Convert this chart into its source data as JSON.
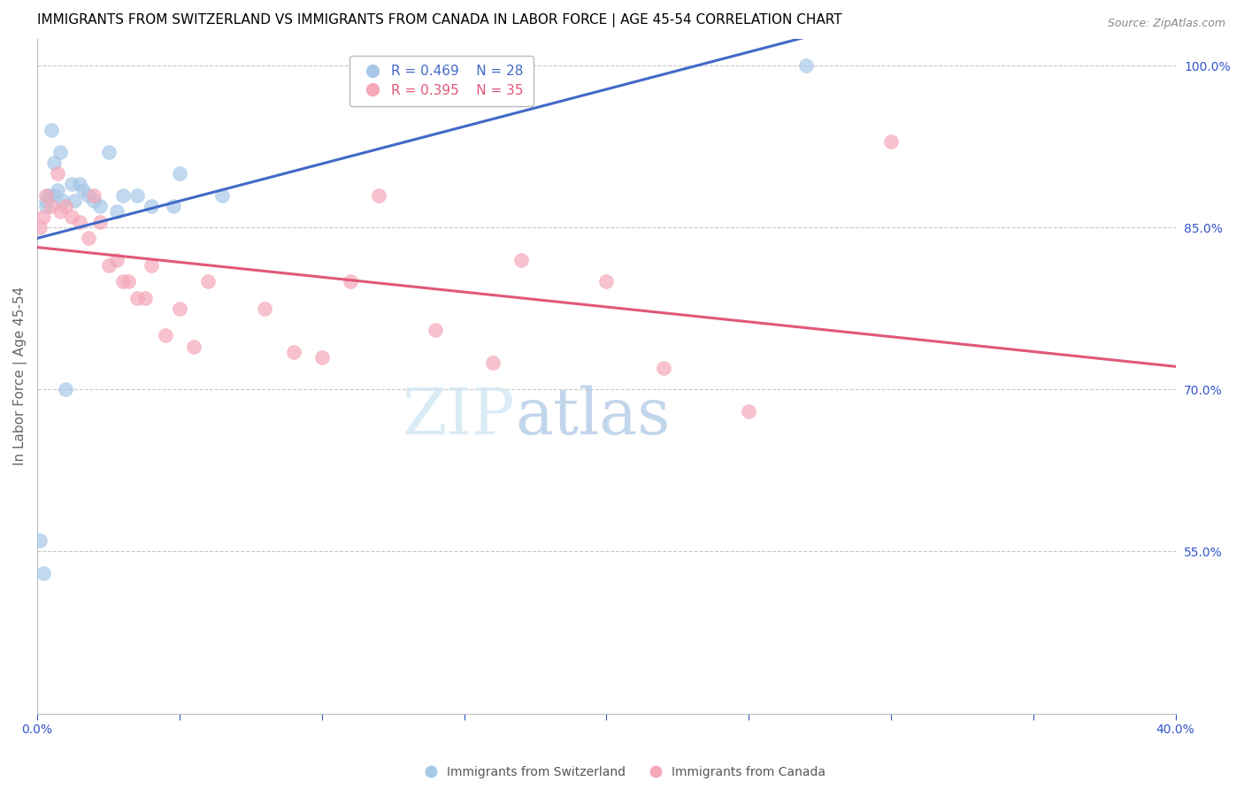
{
  "title": "IMMIGRANTS FROM SWITZERLAND VS IMMIGRANTS FROM CANADA IN LABOR FORCE | AGE 45-54 CORRELATION CHART",
  "source": "Source: ZipAtlas.com",
  "ylabel": "In Labor Force | Age 45-54",
  "x_min": 0.0,
  "x_max": 0.4,
  "y_min": 0.4,
  "y_max": 1.025,
  "right_yticks": [
    0.55,
    0.7,
    0.85,
    1.0
  ],
  "right_yticklabels": [
    "55.0%",
    "70.0%",
    "85.0%",
    "100.0%"
  ],
  "xticks": [
    0.0,
    0.05,
    0.1,
    0.15,
    0.2,
    0.25,
    0.3,
    0.35,
    0.4
  ],
  "xticklabels": [
    "0.0%",
    "",
    "",
    "",
    "",
    "",
    "",
    "",
    "40.0%"
  ],
  "watermark_zip": "ZIP",
  "watermark_atlas": "atlas",
  "blue_color": "#a8c8e8",
  "pink_color": "#f4a8b8",
  "blue_line_color": "#4169c8",
  "pink_line_color": "#e05878",
  "background_color": "#ffffff",
  "grid_color": "#c8c8c8",
  "title_fontsize": 11,
  "source_fontsize": 9,
  "tick_label_color": "#3355cc",
  "R_swiss": 0.469,
  "N_swiss": 28,
  "R_canada": 0.395,
  "N_canada": 35,
  "swiss_x": [
    0.001,
    0.002,
    0.003,
    0.003,
    0.004,
    0.005,
    0.006,
    0.006,
    0.007,
    0.008,
    0.009,
    0.01,
    0.012,
    0.013,
    0.015,
    0.016,
    0.018,
    0.02,
    0.022,
    0.025,
    0.028,
    0.03,
    0.035,
    0.04,
    0.048,
    0.05,
    0.065,
    0.27
  ],
  "swiss_y": [
    0.56,
    0.53,
    0.87,
    0.875,
    0.88,
    0.94,
    0.88,
    0.91,
    0.885,
    0.92,
    0.875,
    0.7,
    0.89,
    0.875,
    0.89,
    0.885,
    0.88,
    0.875,
    0.87,
    0.92,
    0.865,
    0.88,
    0.88,
    0.87,
    0.87,
    0.9,
    0.88,
    1.0
  ],
  "canada_x": [
    0.001,
    0.002,
    0.003,
    0.005,
    0.007,
    0.008,
    0.01,
    0.012,
    0.015,
    0.018,
    0.02,
    0.022,
    0.025,
    0.028,
    0.03,
    0.032,
    0.035,
    0.038,
    0.04,
    0.045,
    0.05,
    0.055,
    0.06,
    0.08,
    0.09,
    0.1,
    0.11,
    0.12,
    0.14,
    0.16,
    0.17,
    0.2,
    0.22,
    0.25,
    0.3
  ],
  "canada_y": [
    0.85,
    0.86,
    0.88,
    0.87,
    0.9,
    0.865,
    0.87,
    0.86,
    0.855,
    0.84,
    0.88,
    0.855,
    0.815,
    0.82,
    0.8,
    0.8,
    0.785,
    0.785,
    0.815,
    0.75,
    0.775,
    0.74,
    0.8,
    0.775,
    0.735,
    0.73,
    0.8,
    0.88,
    0.755,
    0.725,
    0.82,
    0.8,
    0.72,
    0.68,
    0.93
  ],
  "legend_label_swiss": "R = 0.469    N = 28",
  "legend_label_canada": "R = 0.395    N = 35"
}
